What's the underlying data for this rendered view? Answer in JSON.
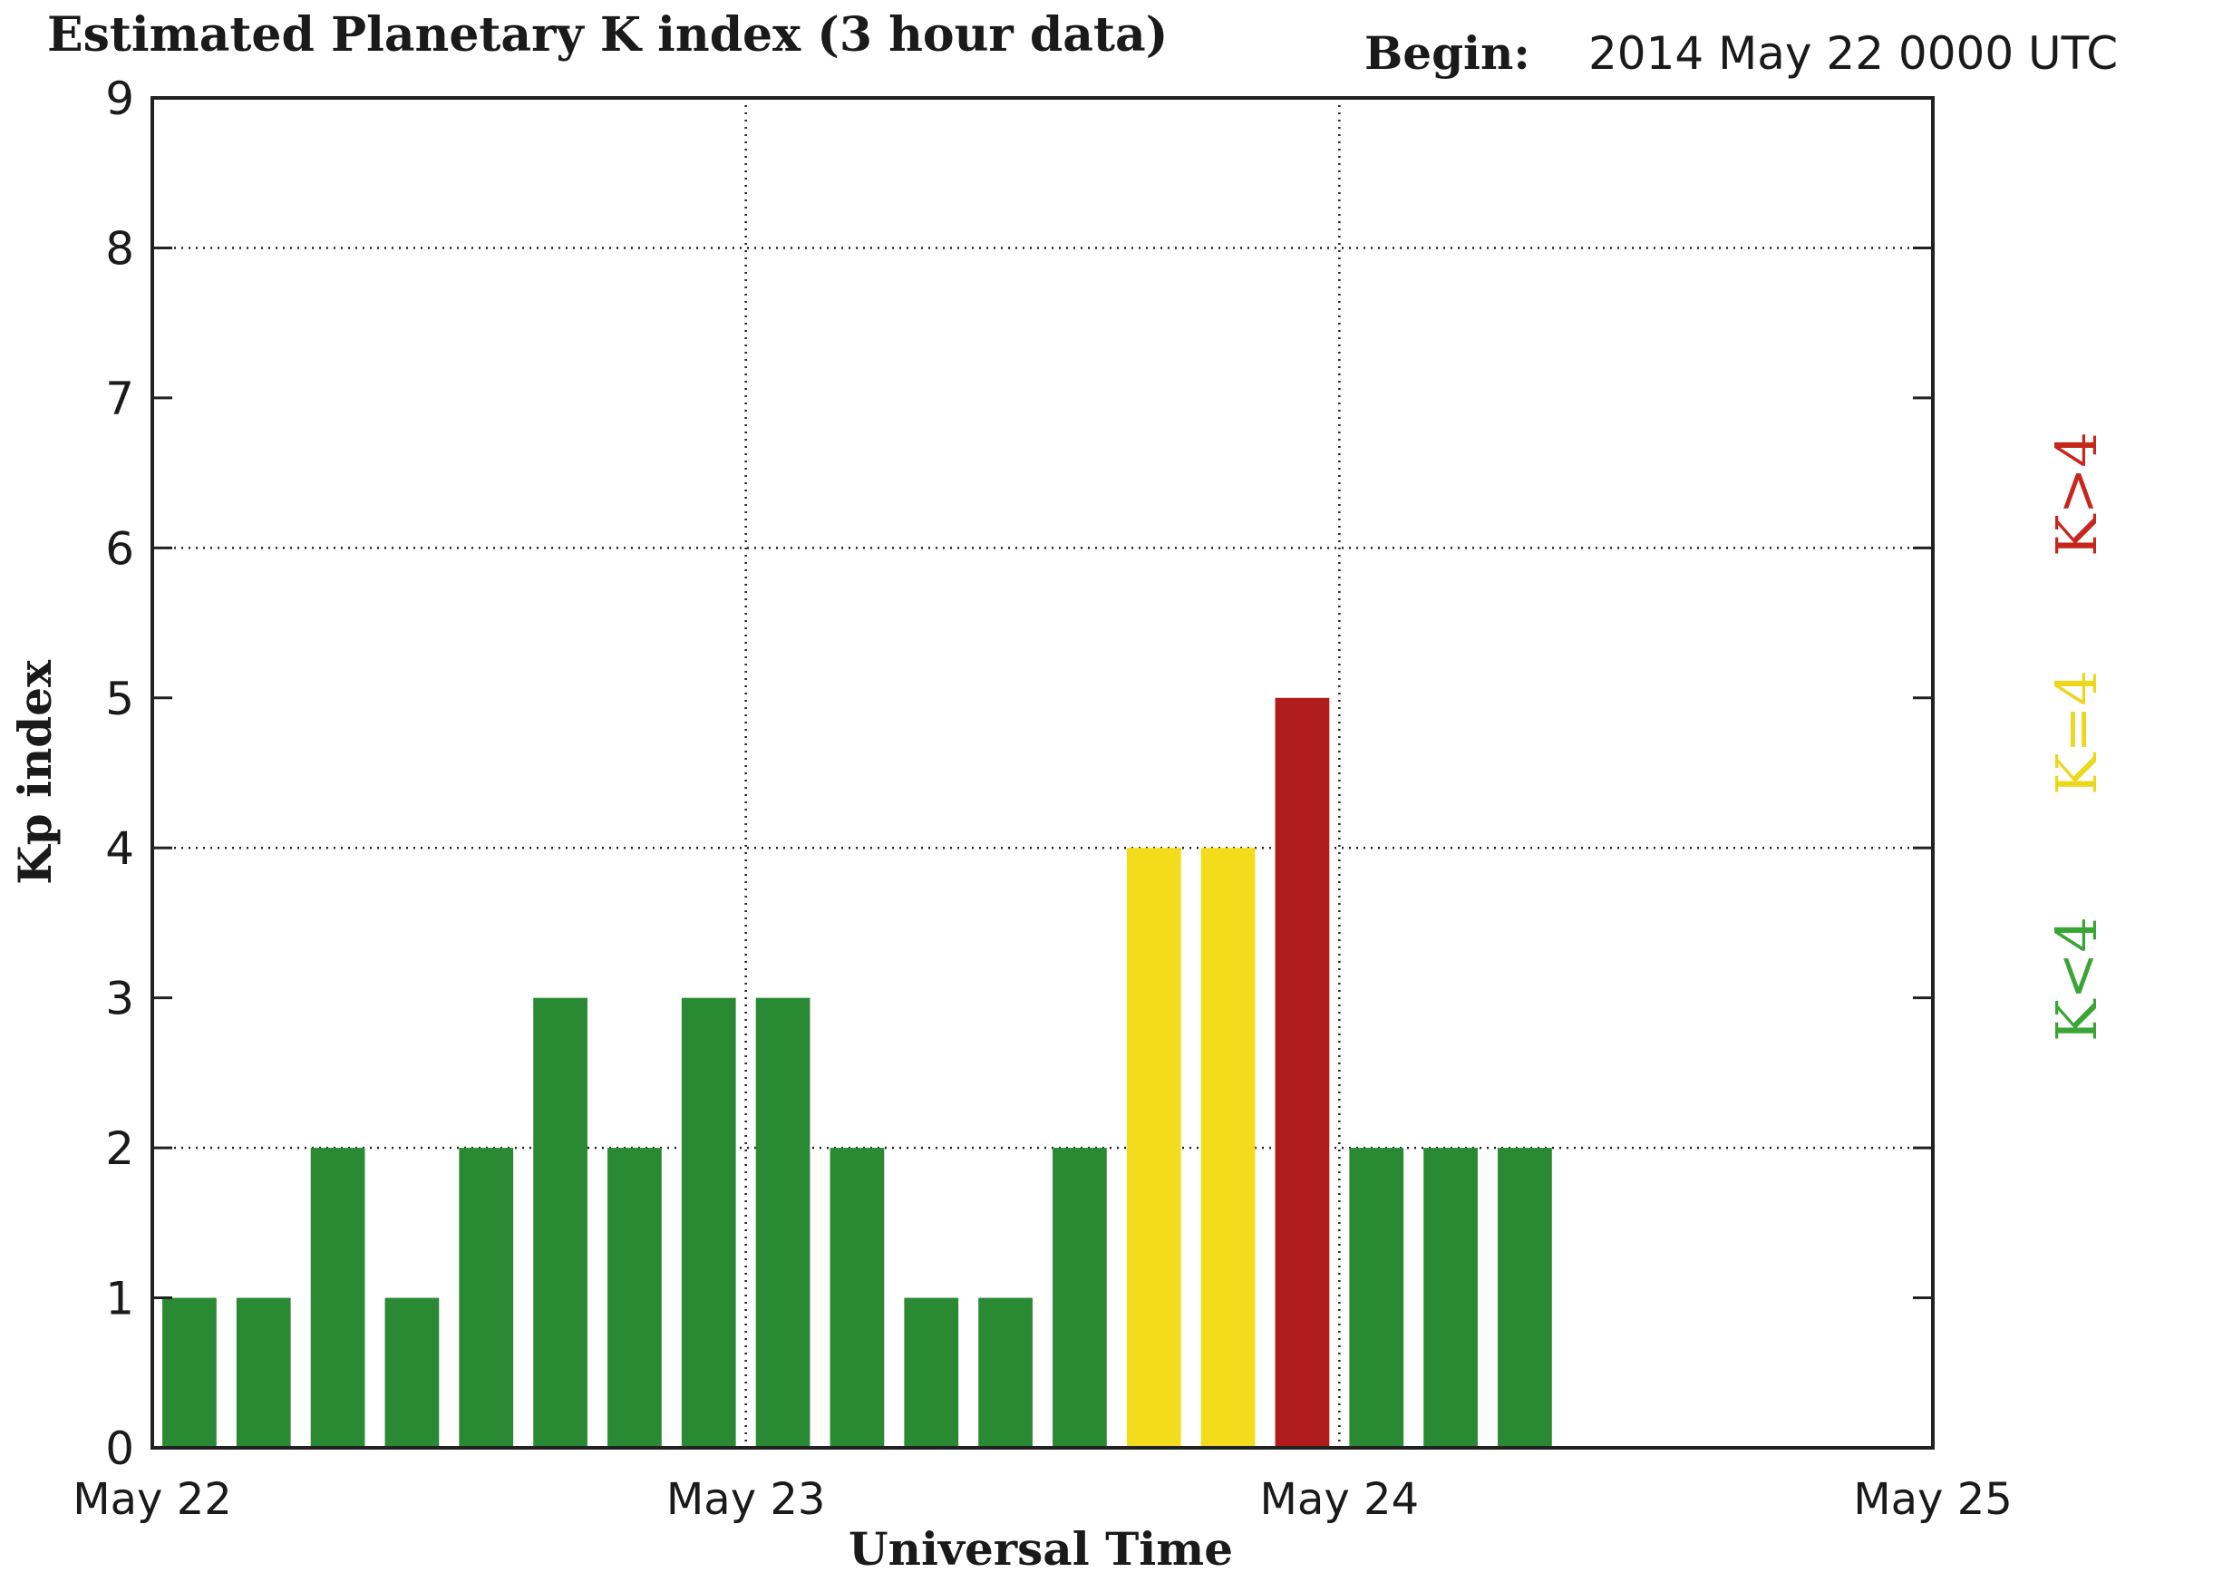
{
  "header": {
    "title": "Estimated Planetary K index (3 hour data)",
    "begin_label": "Begin:",
    "begin_value": "2014 May 22 0000 UTC"
  },
  "colors": {
    "green": "#2a8a34",
    "yellow": "#f2dc1b",
    "red": "#b01c1c",
    "legend_green": "#3aa535",
    "legend_yellow": "#ecd71d",
    "legend_red": "#c4281c"
  },
  "legend": {
    "above": "K>4",
    "equal": "K=4",
    "below": "K<4"
  },
  "chart_data": {
    "type": "bar",
    "title": "Estimated Planetary K index (3 hour data)",
    "xlabel": "Universal Time",
    "ylabel": "Kp index",
    "ylim": [
      0,
      9
    ],
    "yticks": [
      "0",
      "1",
      "2",
      "3",
      "4",
      "5",
      "6",
      "7",
      "8",
      "9"
    ],
    "xlim_days": [
      0,
      3
    ],
    "xticks": [
      "May 22",
      "May 23",
      "May 24",
      "May 25"
    ],
    "interval_hours": 3,
    "grid": true,
    "values": [
      1,
      1,
      2,
      1,
      2,
      3,
      2,
      3,
      3,
      2,
      1,
      1,
      2,
      4,
      4,
      5,
      2,
      2,
      2
    ],
    "legend": [
      "K>4",
      "K=4",
      "K<4"
    ]
  }
}
